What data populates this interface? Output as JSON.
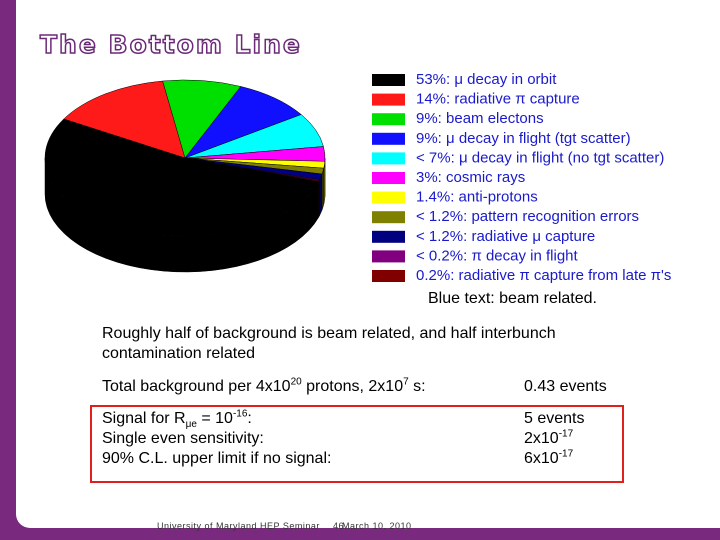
{
  "slide": {
    "title": "The Bottom Line",
    "note": "Blue text: beam related.",
    "summary": "Roughly half of background is beam related, and half interbunch contamination related",
    "total_background": {
      "label": [
        "Total background per 4x10",
        "20",
        " protons, 2x10",
        "7",
        " s:"
      ],
      "value": "0.43 events"
    },
    "signal": {
      "labels": [
        [
          "Signal for R",
          "μe",
          " = 10",
          "-16",
          ":"
        ],
        "Single even sensitivity:",
        "90% C.L. upper limit if no signal:"
      ],
      "values": [
        "5 events",
        [
          "2x10",
          "-17"
        ],
        [
          "6x10",
          "-17"
        ]
      ]
    },
    "footer": {
      "institution": "University of Maryland HEP Seminar",
      "page": "46",
      "date": "March 10, 2010"
    }
  },
  "chart_data": {
    "type": "pie",
    "categories": [
      "53%: μ decay in orbit",
      "14%: radiative π capture",
      "9%: beam electons",
      "9%: μ decay in flight (tgt scatter)",
      "< 7%: μ decay in flight (no tgt scatter)",
      "3%: cosmic rays",
      "1.4%: anti-protons",
      "< 1.2%: pattern recognition errors",
      "< 1.2%: radiative μ capture",
      "< 0.2%: π decay in flight",
      "0.2%: radiative π capture from late π's"
    ],
    "values": [
      53,
      14,
      9,
      9,
      7,
      3,
      1.4,
      1.2,
      1.2,
      0.2,
      0.2
    ],
    "colors": [
      "#000000",
      "#ff1a1a",
      "#00e000",
      "#1010ff",
      "#00ffff",
      "#ff00ff",
      "#ffff00",
      "#808000",
      "#000080",
      "#800080",
      "#800000"
    ],
    "legend_text_color": "#1a1acc",
    "legend": "right"
  }
}
